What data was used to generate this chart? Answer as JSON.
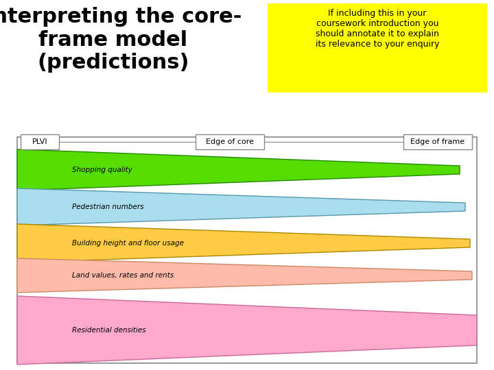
{
  "title": "Interpreting the core-\nframe model\n(predictions)",
  "title_fontsize": 22,
  "title_color": "#000000",
  "note_text": "If including this in your\ncoursework introduction you\nshould annotate it to explain\nits relevance to your enquiry",
  "note_bg": "#FFFF00",
  "note_fontsize": 9,
  "bg_color": "#ffffff",
  "labels": [
    "PLVI",
    "Edge of core",
    "Edge of frame"
  ],
  "wedges": [
    {
      "label": "Shopping quality",
      "color": "#55dd00",
      "edge_color": "#228800",
      "label_fontsize": 7.5
    },
    {
      "label": "Pedestrian numbers",
      "color": "#aaddee",
      "edge_color": "#5599aa",
      "label_fontsize": 7.5
    },
    {
      "label": "Building height and floor usage",
      "color": "#ffcc44",
      "edge_color": "#aa8800",
      "label_fontsize": 7.5
    },
    {
      "label": "Land values, rates and rents",
      "color": "#ffbbaa",
      "edge_color": "#cc8866",
      "label_fontsize": 7.5
    },
    {
      "label": "Residential densities",
      "color": "#ffaacc",
      "edge_color": "#cc6699",
      "label_fontsize": 7.5
    }
  ]
}
